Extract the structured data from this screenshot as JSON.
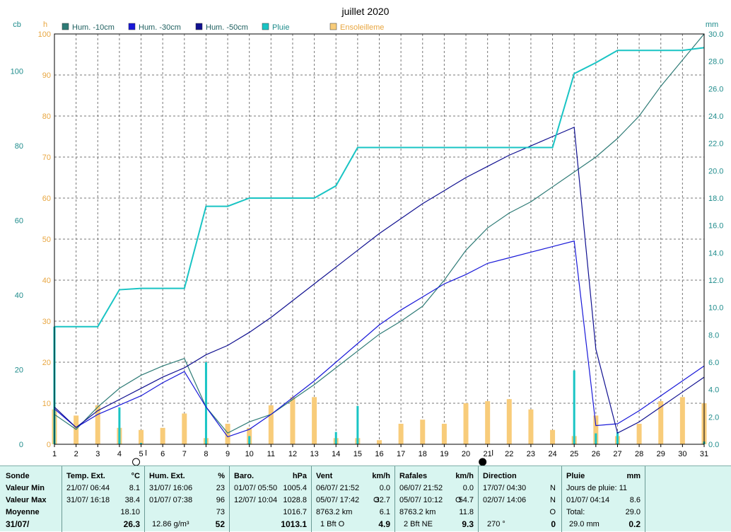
{
  "chart_data": {
    "type": "line",
    "title": "juillet 2020",
    "x": [
      1,
      2,
      3,
      4,
      5,
      6,
      7,
      8,
      9,
      10,
      11,
      12,
      13,
      14,
      15,
      16,
      17,
      18,
      19,
      20,
      21,
      22,
      23,
      24,
      25,
      26,
      27,
      28,
      29,
      30,
      31
    ],
    "left_axis": {
      "unit": "cb",
      "range": [
        0,
        110
      ],
      "ticks": [
        0,
        20,
        40,
        60,
        80,
        100
      ]
    },
    "mid_axis": {
      "unit": "h",
      "range": [
        0,
        100
      ],
      "ticks": [
        0,
        10,
        20,
        30,
        40,
        50,
        60,
        70,
        80,
        90,
        100
      ]
    },
    "right_axis": {
      "unit": "mm",
      "range": [
        0,
        30
      ],
      "ticks": [
        "0.0",
        "2.0",
        "4.0",
        "6.0",
        "8.0",
        "10.0",
        "12.0",
        "14.0",
        "16.0",
        "18.0",
        "20.0",
        "22.0",
        "24.0",
        "26.0",
        "28.0",
        "30.0"
      ]
    },
    "legend": [
      "Hum. -10cm",
      "Hum. -30cm",
      "Hum. -50cm",
      "Pluie",
      "Ensoleilleme"
    ],
    "colors": {
      "hum10": "#2e7b76",
      "hum30": "#1818d8",
      "hum50": "#101090",
      "pluie": "#19c4c4",
      "sun": "#f8cc7a",
      "axis_left": "#1f8c8c",
      "axis_mid": "#e8a640",
      "axis_right": "#1f8c8c"
    },
    "series": [
      {
        "name": "Hum. -10cm",
        "axis": "cb",
        "values": [
          8,
          4,
          10,
          15,
          18.5,
          21,
          23,
          10,
          3,
          6,
          8,
          12,
          16,
          20.5,
          25,
          29.5,
          33,
          37,
          44,
          52,
          58,
          62,
          65,
          69,
          73,
          77,
          82,
          88,
          96,
          103,
          110
        ]
      },
      {
        "name": "Hum. -30cm",
        "axis": "cb",
        "values": [
          9.5,
          4.5,
          8,
          10.5,
          13,
          16.5,
          19.5,
          10,
          2,
          4,
          8,
          12.5,
          17,
          22,
          27,
          32,
          36,
          39.5,
          43,
          45.5,
          48.5,
          50,
          51.5,
          53,
          54.5,
          5,
          5.5,
          9,
          13,
          17,
          21
        ]
      },
      {
        "name": "Hum. -50cm",
        "axis": "cb",
        "values": [
          10,
          4.5,
          9,
          12,
          15,
          18,
          20.5,
          24,
          26.5,
          30,
          34,
          38.5,
          43,
          47.5,
          52,
          56.5,
          60.5,
          64.5,
          68,
          71.5,
          74.5,
          77.5,
          80,
          82.5,
          85,
          25.5,
          3,
          6,
          10,
          14,
          18
        ]
      },
      {
        "name": "Pluie",
        "axis": "mm",
        "type": "cumulative",
        "values": [
          8.6,
          8.6,
          8.6,
          11.3,
          11.4,
          11.4,
          11.4,
          17.4,
          17.4,
          18.0,
          18.0,
          18.0,
          18.0,
          18.9,
          21.7,
          21.7,
          21.7,
          21.7,
          21.7,
          21.7,
          21.7,
          21.7,
          21.7,
          21.7,
          27.1,
          27.9,
          28.8,
          28.8,
          28.8,
          28.8,
          29.0
        ],
        "daily": [
          8.6,
          0,
          0,
          2.7,
          0.1,
          0,
          0,
          6.0,
          0,
          0.6,
          0,
          0,
          0,
          0.9,
          2.8,
          0,
          0,
          0,
          0,
          0,
          0,
          0,
          0,
          0,
          5.4,
          0.8,
          0.9,
          0,
          0,
          0,
          0.2
        ]
      },
      {
        "name": "Ensoleilleme",
        "axis": "h",
        "type": "bar",
        "values": [
          8.5,
          7,
          9.5,
          4,
          3.5,
          4,
          7.5,
          1.5,
          5,
          4,
          9.5,
          11.5,
          11.5,
          1.5,
          1.5,
          1,
          5,
          6,
          5,
          10,
          10.5,
          11,
          8.5,
          3.5,
          2,
          7,
          2,
          5,
          10.5,
          11.5,
          10
        ]
      }
    ],
    "moon_markers": [
      {
        "day": 5,
        "phase": "new"
      },
      {
        "day": 21,
        "phase": "full"
      }
    ]
  },
  "stats": {
    "labels": {
      "title": "Sonde",
      "min": "Valeur Min",
      "max": "Valeur Max",
      "avg": "Moyenne",
      "date": "31/07/"
    },
    "temp": {
      "title": "Temp. Ext.",
      "unit": "°C",
      "min_dt": "21/07/  06:44",
      "min": "8.1",
      "max_dt": "31/07/  16:18",
      "max": "38.4",
      "avg": "18.10",
      "cur": "26.3"
    },
    "hum": {
      "title": "Hum. Ext.",
      "unit": "%",
      "min_dt": "31/07/  16:06",
      "min": "23",
      "max_dt": "01/07/  07:38",
      "max": "96",
      "avg": "73",
      "extra": "12.86 g/m³",
      "cur": "52"
    },
    "baro": {
      "title": "Baro.",
      "unit": "hPa",
      "min_dt": "01/07/  05:50",
      "min": "1005.4",
      "max_dt": "12/07/  10:04",
      "max": "1028.8",
      "avg": "1016.7",
      "cur": "1013.1"
    },
    "vent": {
      "title": "Vent",
      "unit": "km/h",
      "min_dt": "06/07/  21:52",
      "min": "0.0",
      "max_dt": "05/07/  17:42",
      "max_dir": "O",
      "max": "32.7",
      "avg_dist": "8763.2 km",
      "avg": "6.1",
      "bft": "1 Bft O",
      "cur": "4.9"
    },
    "rafales": {
      "title": "Rafales",
      "unit": "km/h",
      "min_dt": "06/07/  21:52",
      "min": "0.0",
      "max_dt": "05/07/  10:12",
      "max_dir": "O",
      "max": "54.7",
      "avg_dist": "8763.2 km",
      "avg": "11.8",
      "bft": "2 Bft NE",
      "cur": "9.3"
    },
    "direction": {
      "title": "Direction",
      "min_dt": "17/07/  04:30",
      "min": "N",
      "max_dt": "02/07/  14:06",
      "max": "N",
      "avg": "O",
      "deg": "270 °",
      "cur": "0"
    },
    "pluie": {
      "title": "Pluie",
      "unit": "mm",
      "days_label": "Jours de pluie: 11",
      "max_dt": "01/07/  04:14",
      "max": "8.6",
      "total_label": "Total:",
      "total": "29.0",
      "month": "29.0 mm",
      "cur": "0.2"
    }
  }
}
